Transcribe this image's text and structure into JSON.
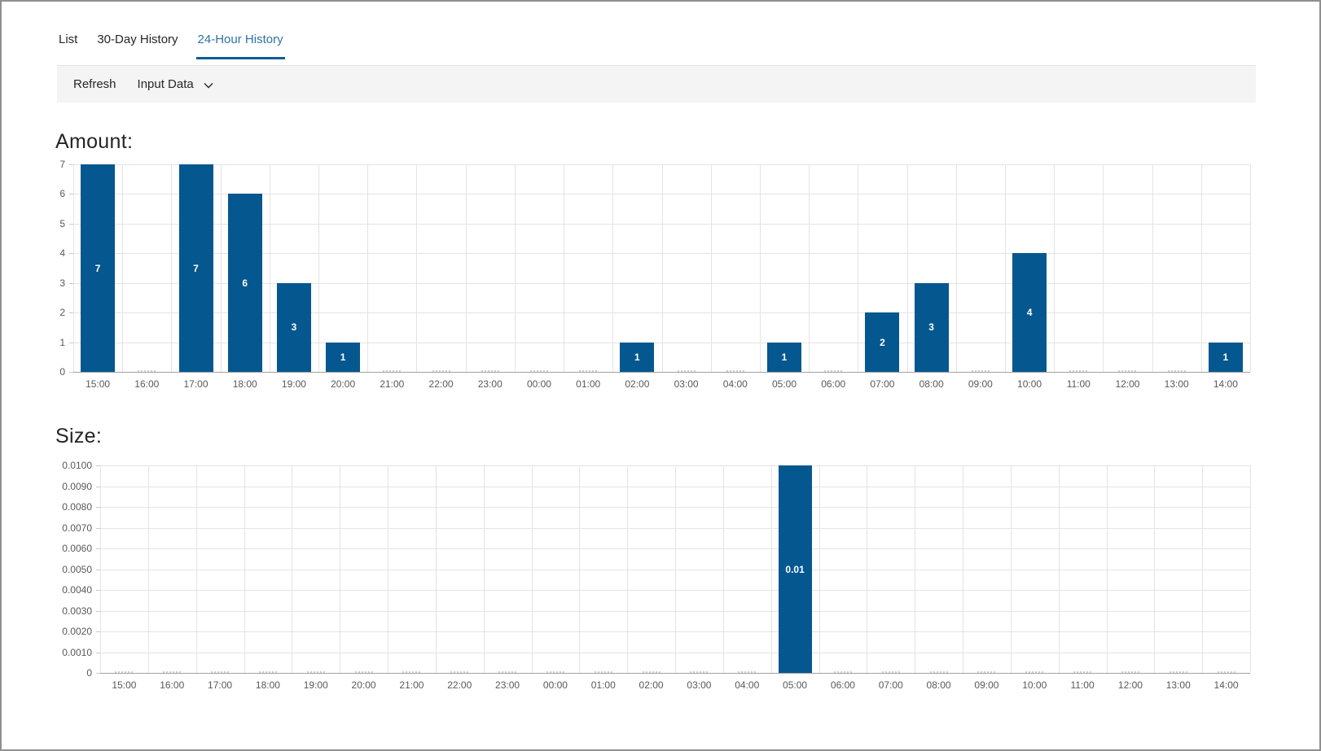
{
  "tabs": {
    "items": [
      {
        "label": "List",
        "active": false
      },
      {
        "label": "30-Day History",
        "active": false
      },
      {
        "label": "24-Hour History",
        "active": true
      }
    ]
  },
  "toolbar": {
    "refresh_label": "Refresh",
    "input_data_label": "Input Data",
    "input_data_icon": "chevron-down"
  },
  "colors": {
    "bar": "#05578f",
    "active_tab_text": "#2f72a6",
    "active_tab_underline": "#0f5c94",
    "toolbar_background": "#f4f4f4",
    "gridline": "#e4e4e4",
    "axis_line": "#a0a0a0",
    "tick_text": "#595959",
    "bar_value_text": "#ffffff"
  },
  "chart_data": [
    {
      "id": "amount",
      "type": "bar",
      "title": "Amount:",
      "categories": [
        "15:00",
        "16:00",
        "17:00",
        "18:00",
        "19:00",
        "20:00",
        "21:00",
        "22:00",
        "23:00",
        "00:00",
        "01:00",
        "02:00",
        "03:00",
        "04:00",
        "05:00",
        "06:00",
        "07:00",
        "08:00",
        "09:00",
        "10:00",
        "11:00",
        "12:00",
        "13:00",
        "14:00"
      ],
      "values": [
        7,
        0,
        7,
        6,
        3,
        1,
        0,
        0,
        0,
        0,
        0,
        1,
        0,
        0,
        1,
        0,
        2,
        3,
        0,
        4,
        0,
        0,
        0,
        1
      ],
      "bar_labels": [
        "7",
        "",
        "7",
        "6",
        "3",
        "1",
        "",
        "",
        "",
        "",
        "",
        "1",
        "",
        "",
        "1",
        "",
        "2",
        "3",
        "",
        "4",
        "",
        "",
        "",
        "1"
      ],
      "xlabel": "",
      "ylabel": "",
      "ylim": [
        0,
        7
      ],
      "yticks": [
        0,
        1,
        2,
        3,
        4,
        5,
        6,
        7
      ],
      "ytick_labels": [
        "0",
        "1",
        "2",
        "3",
        "4",
        "5",
        "6",
        "7"
      ],
      "grid": true,
      "legend": "none"
    },
    {
      "id": "size",
      "type": "bar",
      "title": "Size:",
      "categories": [
        "15:00",
        "16:00",
        "17:00",
        "18:00",
        "19:00",
        "20:00",
        "21:00",
        "22:00",
        "23:00",
        "00:00",
        "01:00",
        "02:00",
        "03:00",
        "04:00",
        "05:00",
        "06:00",
        "07:00",
        "08:00",
        "09:00",
        "10:00",
        "11:00",
        "12:00",
        "13:00",
        "14:00"
      ],
      "values": [
        0,
        0,
        0,
        0,
        0,
        0,
        0,
        0,
        0,
        0,
        0,
        0,
        0,
        0,
        0.01,
        0,
        0,
        0,
        0,
        0,
        0,
        0,
        0,
        0
      ],
      "bar_labels": [
        "",
        "",
        "",
        "",
        "",
        "",
        "",
        "",
        "",
        "",
        "",
        "",
        "",
        "",
        "0.01",
        "",
        "",
        "",
        "",
        "",
        "",
        "",
        "",
        ""
      ],
      "xlabel": "",
      "ylabel": "",
      "ylim": [
        0,
        0.01
      ],
      "yticks": [
        0,
        0.001,
        0.002,
        0.003,
        0.004,
        0.005,
        0.006,
        0.007,
        0.008,
        0.009,
        0.01
      ],
      "ytick_labels": [
        "0",
        "0.0010",
        "0.0020",
        "0.0030",
        "0.0040",
        "0.0050",
        "0.0060",
        "0.0070",
        "0.0080",
        "0.0090",
        "0.0100"
      ],
      "grid": true,
      "legend": "none"
    }
  ]
}
